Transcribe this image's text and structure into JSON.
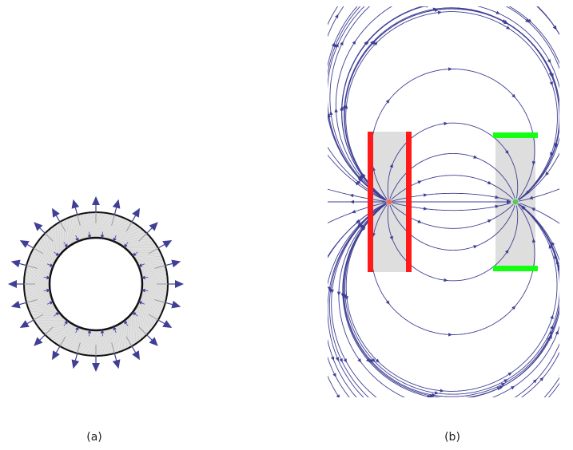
{
  "captions": {
    "a": "(a)",
    "b": "(b)"
  },
  "colors": {
    "arrow": "#3f3f95",
    "ring_fill": "#e0e0e0",
    "ring_edge": "#111111",
    "region": "#dedede",
    "red_plate": "#ff1a1a",
    "red_point": "#f06a5a",
    "green_plate": "#14ff14",
    "green_point": "#58c958"
  },
  "icons": {
    "arrow": "triangle-arrowhead"
  },
  "panel_a": {
    "outer_arrow_count": 24,
    "inner_arrow_count": 24,
    "arrow_direction": "outward"
  },
  "panel_b": {
    "left_plates": {
      "orientation": "vertical",
      "count": 2,
      "color": "red"
    },
    "right_plates": {
      "orientation": "horizontal",
      "count": 2,
      "color": "green"
    }
  }
}
